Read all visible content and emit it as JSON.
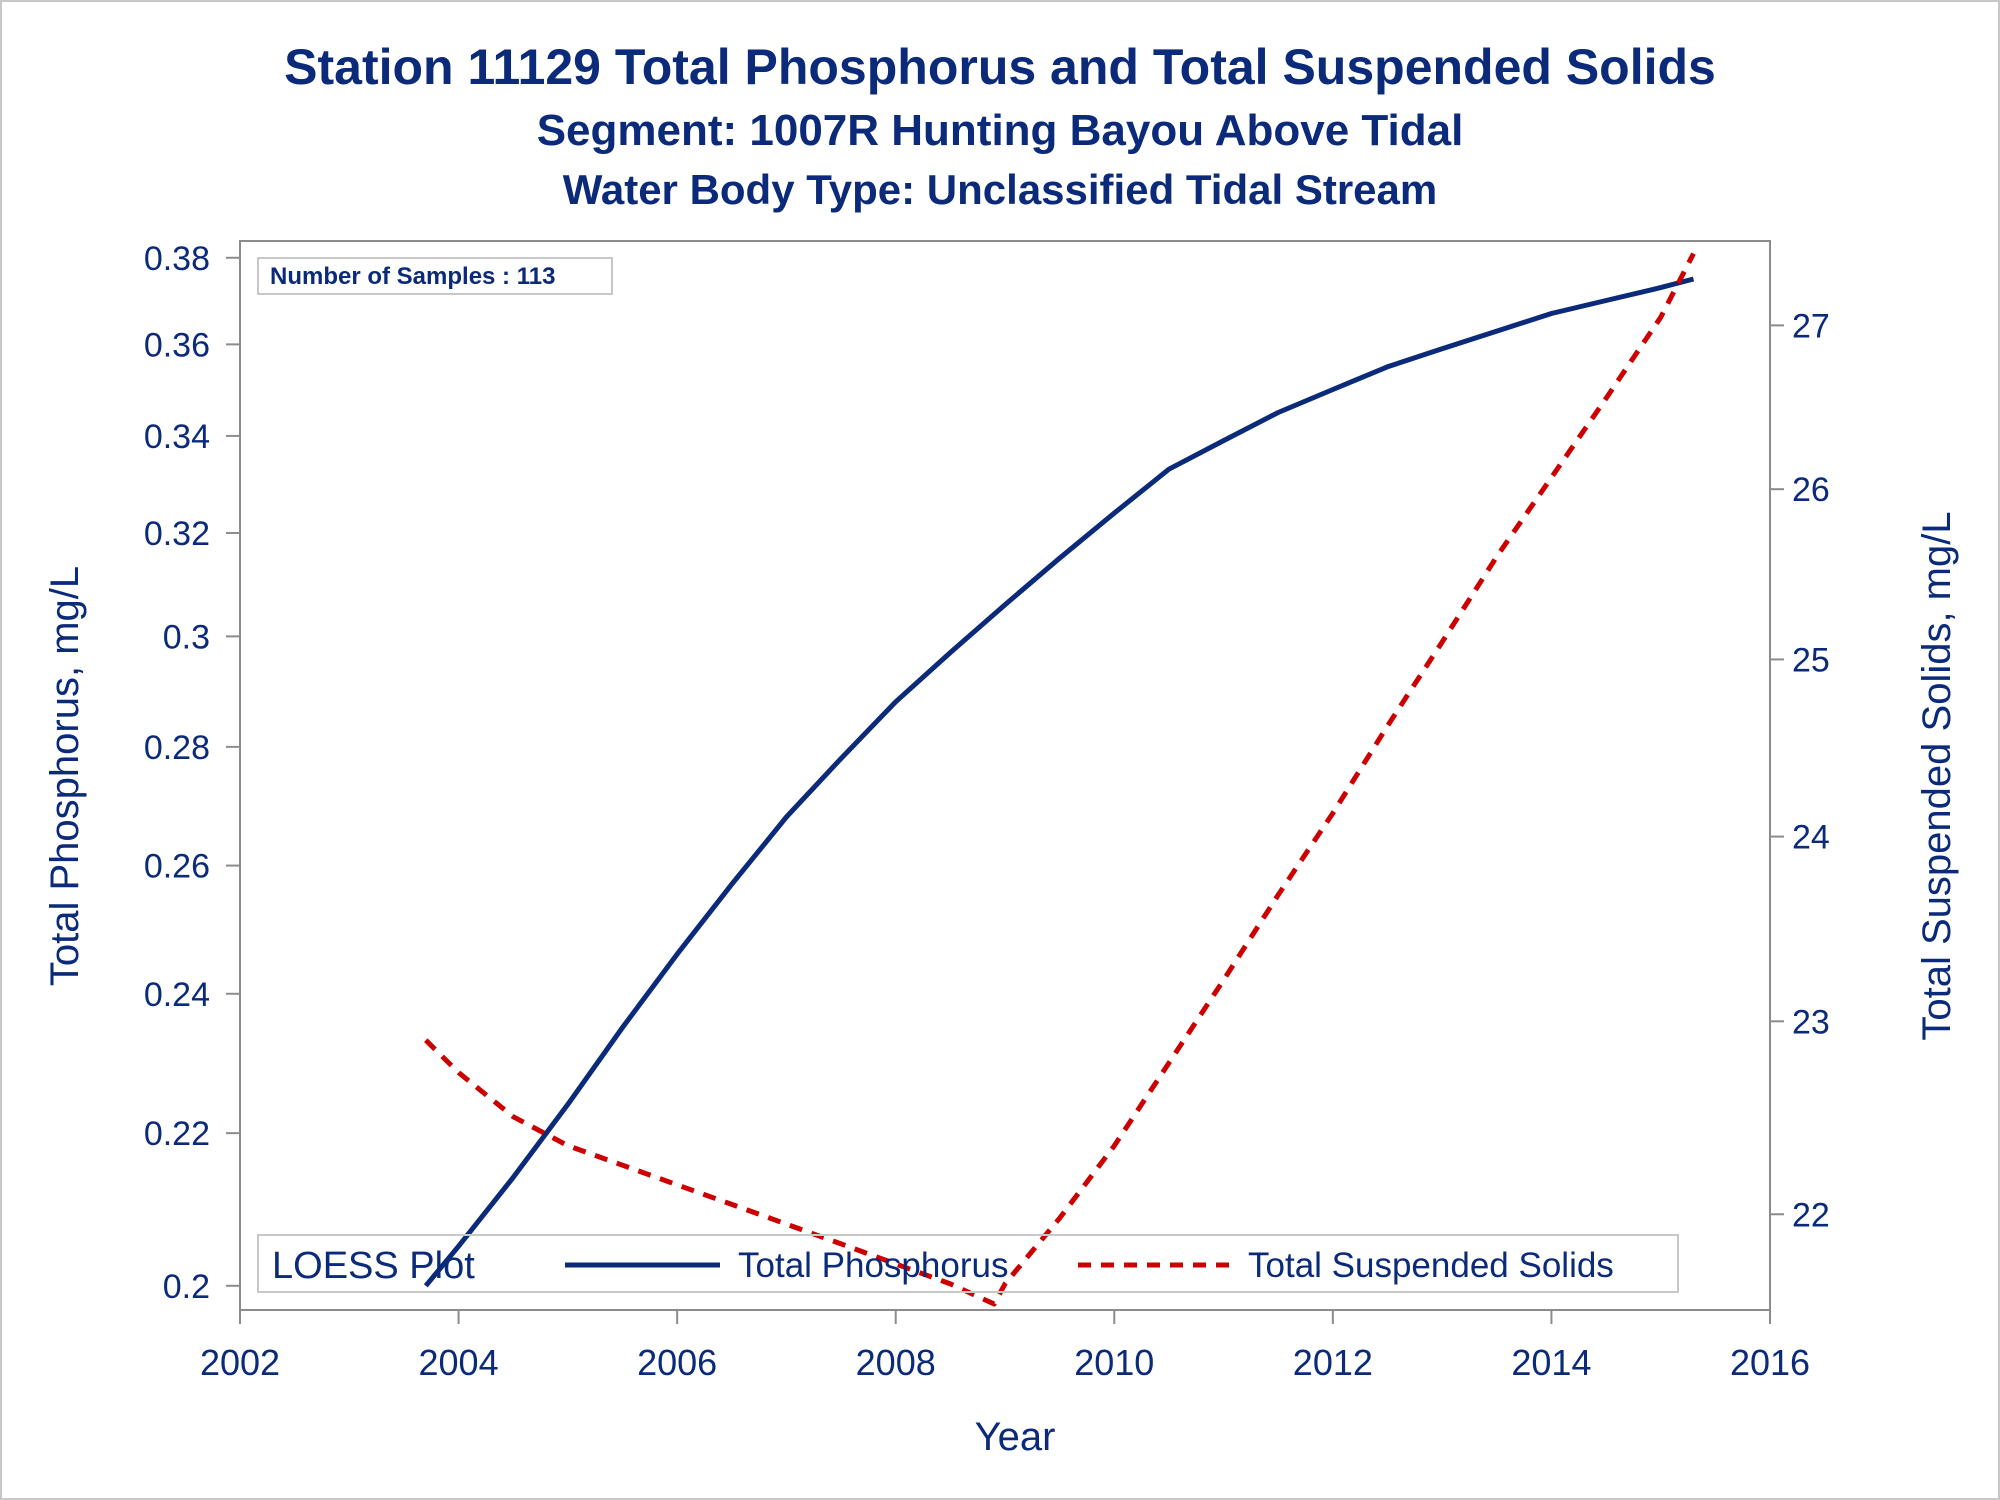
{
  "chart_data": {
    "type": "line",
    "title": "Station 11129  Total Phosphorus and Total Suspended Solids",
    "subtitle": "Segment: 1007R  Hunting Bayou Above Tidal",
    "subtitle2": "Water Body Type: Unclassified Tidal Stream",
    "xlabel": "Year",
    "ylabel_left": "Total Phosphorus, mg/L",
    "ylabel_right": "Total Suspended Solids, mg/L",
    "xlim": [
      2002,
      2016
    ],
    "ylim_left": [
      0.197,
      0.384
    ],
    "ylim_right": [
      21.52,
      27.53
    ],
    "y_left_scale": "log",
    "y_right_scale": "log",
    "x_ticks": [
      2002,
      2004,
      2006,
      2008,
      2010,
      2012,
      2014,
      2016
    ],
    "y_left_ticks": [
      0.2,
      0.22,
      0.24,
      0.26,
      0.28,
      0.3,
      0.32,
      0.34,
      0.36,
      0.38
    ],
    "y_left_tick_labels": [
      "0.2",
      "0.22",
      "0.24",
      "0.26",
      "0.28",
      "0.3",
      "0.32",
      "0.34",
      "0.36",
      "0.38"
    ],
    "y_right_ticks": [
      22,
      23,
      24,
      25,
      26,
      27
    ],
    "grid": false,
    "annotation": "Number of Samples : 113",
    "legend": {
      "title": "LOESS Plot",
      "placement": "bottom-inside",
      "entries": [
        "Total Phosphorus",
        "Total Suspended Solids"
      ]
    },
    "series": [
      {
        "name": "Total Phosphorus",
        "axis": "left",
        "color": "#0b2a7a",
        "style": "solid",
        "x": [
          2003.7,
          2004.0,
          2004.5,
          2005.0,
          2005.5,
          2006.0,
          2006.5,
          2007.0,
          2007.5,
          2008.0,
          2008.5,
          2009.0,
          2009.5,
          2010.0,
          2010.5,
          2011.0,
          2011.5,
          2012.0,
          2012.5,
          2013.0,
          2013.5,
          2014.0,
          2014.5,
          2015.0,
          2015.3
        ],
        "y": [
          0.2,
          0.205,
          0.214,
          0.224,
          0.235,
          0.246,
          0.257,
          0.268,
          0.278,
          0.288,
          0.297,
          0.306,
          0.315,
          0.324,
          0.333,
          0.339,
          0.345,
          0.35,
          0.355,
          0.359,
          0.363,
          0.367,
          0.37,
          0.373,
          0.375
        ]
      },
      {
        "name": "Total Suspended Solids",
        "axis": "right",
        "color": "#cc0000",
        "style": "dashed",
        "x": [
          2003.7,
          2004.0,
          2004.5,
          2005.0,
          2005.5,
          2006.0,
          2006.5,
          2007.0,
          2007.5,
          2008.0,
          2008.5,
          2008.9,
          2009.0,
          2009.5,
          2010.0,
          2010.5,
          2011.0,
          2011.5,
          2012.0,
          2012.5,
          2013.0,
          2013.5,
          2014.0,
          2014.5,
          2015.0,
          2015.3
        ],
        "y": [
          22.9,
          22.73,
          22.5,
          22.35,
          22.25,
          22.15,
          22.05,
          21.95,
          21.85,
          21.75,
          21.65,
          21.55,
          21.65,
          21.98,
          22.35,
          22.78,
          23.22,
          23.68,
          24.13,
          24.62,
          25.1,
          25.6,
          26.07,
          26.55,
          27.05,
          27.45
        ]
      }
    ]
  }
}
